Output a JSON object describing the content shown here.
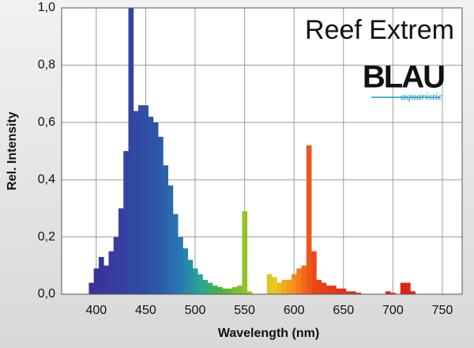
{
  "chart_data": {
    "type": "bar",
    "title": "Reef Extrem",
    "logo": {
      "name": "BLAU",
      "tagline": "aquaristic"
    },
    "xlabel": "Wavelength (nm)",
    "ylabel": "Rel. Intensity",
    "x": [
      395,
      400,
      405,
      410,
      415,
      420,
      425,
      430,
      435,
      440,
      445,
      450,
      455,
      460,
      465,
      470,
      475,
      480,
      485,
      490,
      495,
      500,
      505,
      510,
      515,
      520,
      525,
      530,
      535,
      540,
      545,
      550,
      555,
      560,
      565,
      570,
      575,
      580,
      585,
      590,
      595,
      600,
      605,
      610,
      615,
      620,
      625,
      630,
      635,
      640,
      645,
      650,
      655,
      660,
      665,
      670,
      675,
      680,
      685,
      690,
      695,
      700,
      705,
      710,
      715,
      720
    ],
    "values": [
      0.04,
      0.09,
      0.13,
      0.1,
      0.15,
      0.2,
      0.3,
      0.5,
      1.0,
      0.64,
      0.66,
      0.66,
      0.62,
      0.6,
      0.55,
      0.45,
      0.38,
      0.28,
      0.2,
      0.16,
      0.12,
      0.09,
      0.07,
      0.05,
      0.04,
      0.03,
      0.025,
      0.02,
      0.02,
      0.025,
      0.03,
      0.29,
      0.01,
      0,
      0,
      0,
      0.07,
      0.06,
      0.04,
      0.05,
      0.05,
      0.07,
      0.09,
      0.1,
      0.52,
      0.15,
      0.05,
      0.04,
      0.03,
      0.03,
      0.02,
      0.02,
      0.01,
      0.01,
      0.005,
      0,
      0,
      0,
      0,
      0,
      0.01,
      0.005,
      0,
      0.04,
      0.04,
      0.01
    ],
    "bar_width": 5,
    "xlim": [
      365,
      770
    ],
    "ylim": [
      0,
      1.0
    ],
    "xticks": [
      400,
      450,
      500,
      550,
      600,
      650,
      700,
      750
    ],
    "yticks": [
      {
        "value": 0,
        "label": "0,0"
      },
      {
        "value": 0.2,
        "label": "0,2"
      },
      {
        "value": 0.4,
        "label": "0,4"
      },
      {
        "value": 0.6,
        "label": "0,6"
      },
      {
        "value": 0.8,
        "label": "0,8"
      },
      {
        "value": 1.0,
        "label": "1,0"
      }
    ],
    "grid": true
  }
}
